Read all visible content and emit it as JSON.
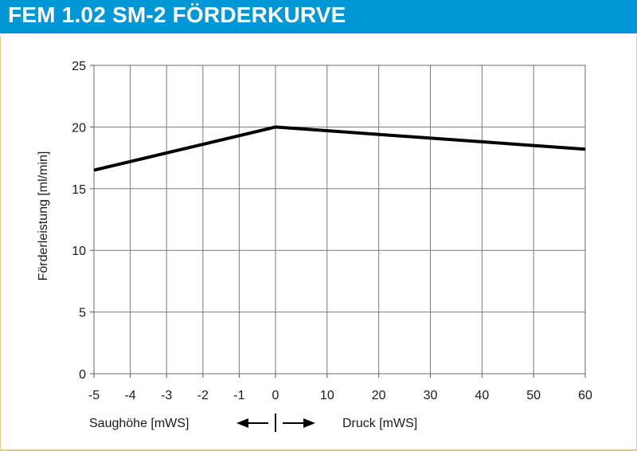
{
  "header": {
    "title": "FEM 1.02 SM-2 FÖRDERKURVE",
    "background_color": "#0097d6"
  },
  "chart_data": {
    "type": "line",
    "ylabel": "Förderleistung [ml/min]",
    "xlabel_left": "Saughöhe [mWS]",
    "xlabel_right": "Druck [mWS]",
    "ylim": [
      0,
      25
    ],
    "y_ticks": [
      "0",
      "5",
      "10",
      "15",
      "20",
      "25"
    ],
    "x_ticks_left": [
      "-5",
      "-4",
      "-3",
      "-2",
      "-1",
      "0"
    ],
    "x_ticks_right": [
      "10",
      "20",
      "30",
      "40",
      "50",
      "60"
    ],
    "x_scale": "piecewise-linear: suction side -5..0 mWS, pressure side 0..60 mWS",
    "grid": true,
    "series": [
      {
        "color": "#000000",
        "points": [
          {
            "x": -5,
            "y": 16.5
          },
          {
            "x": 0,
            "y": 20
          },
          {
            "x": 60,
            "y": 18.2
          }
        ]
      }
    ],
    "annotation": "arrows pointing left (suction) and right (pressure) from 0"
  }
}
